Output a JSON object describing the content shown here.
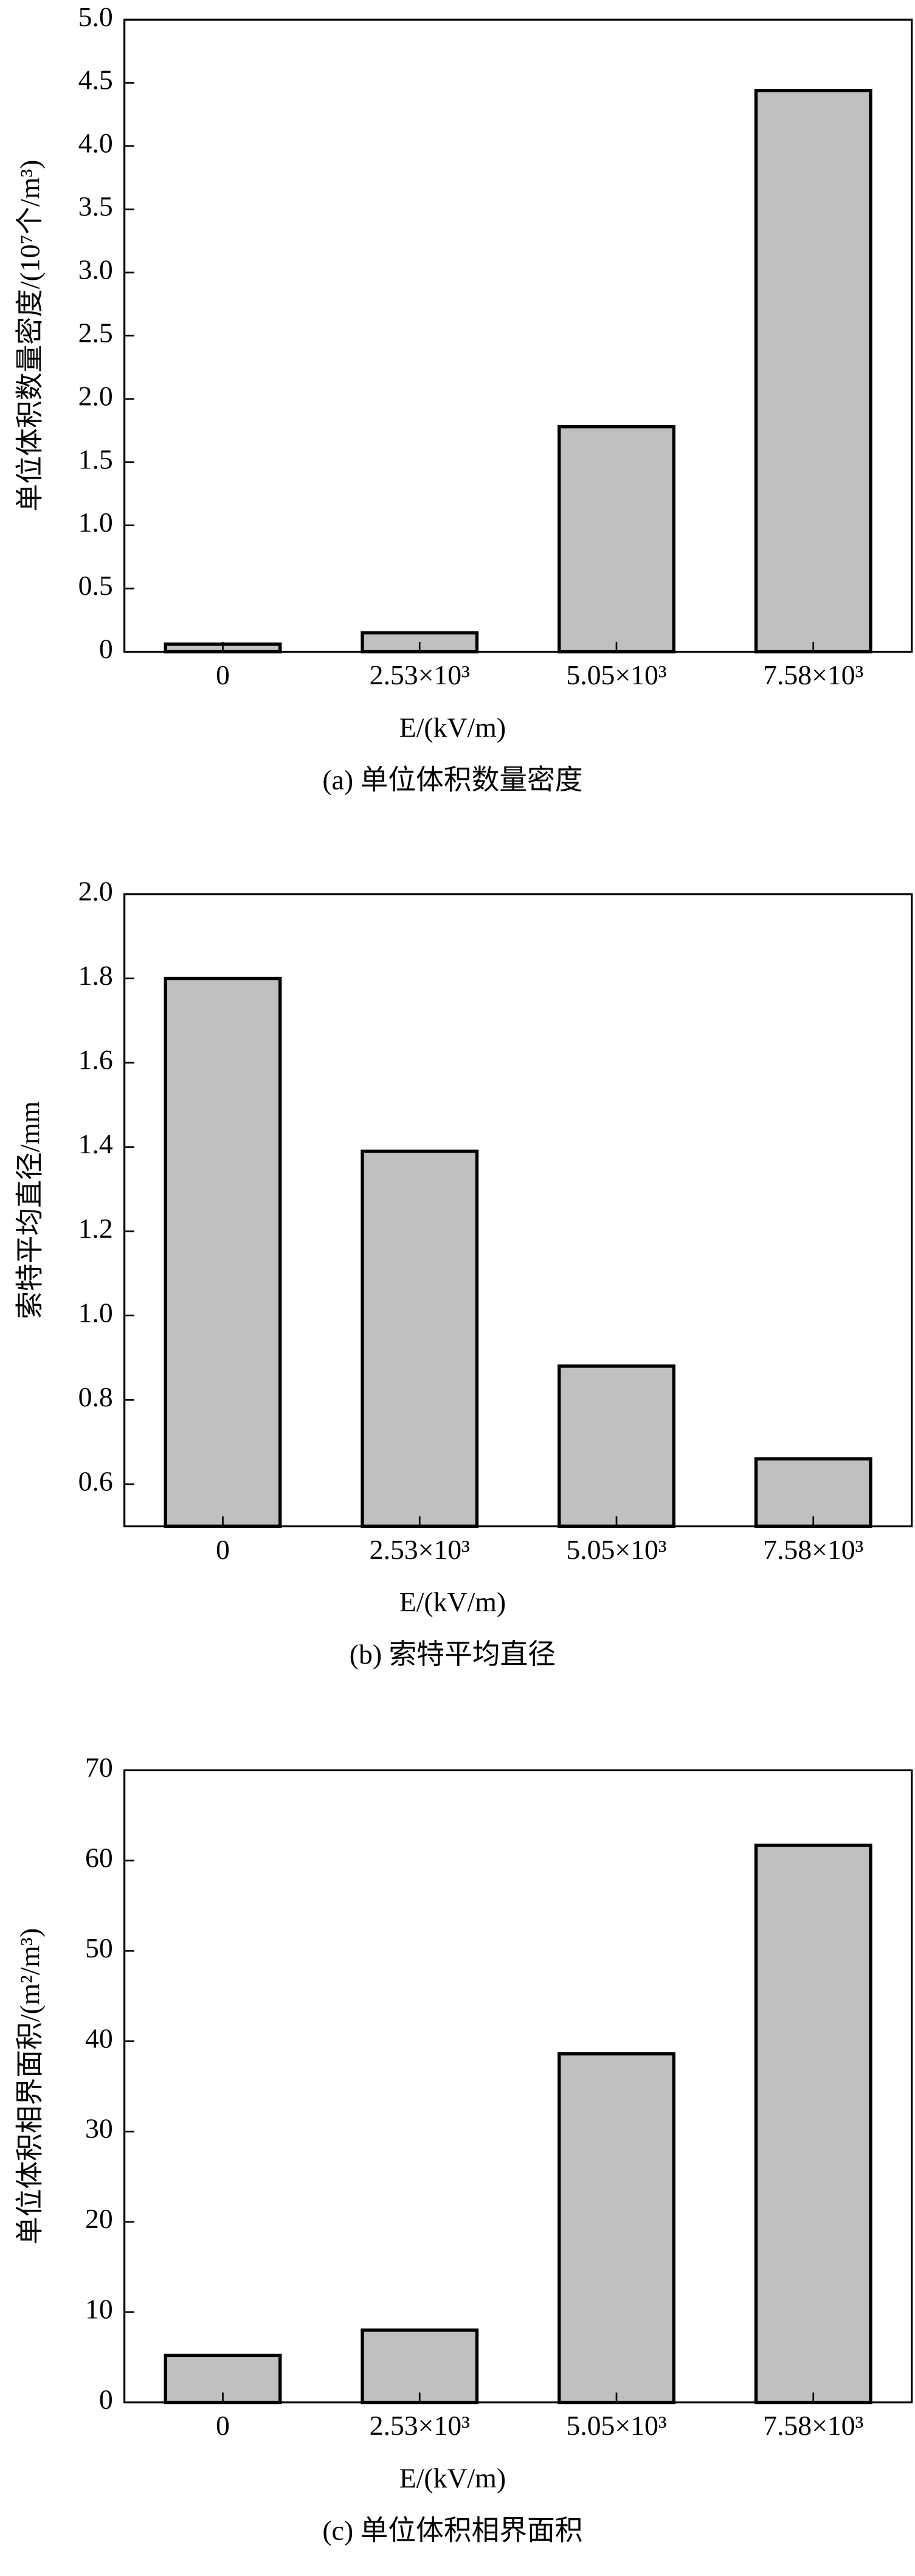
{
  "chart_data": [
    {
      "type": "bar",
      "title": "(a) 单位体积数量密度",
      "x_label": "E/(kV/m)",
      "y_label": "单位体积数量密度/(10⁷个/m³)",
      "categories": [
        "0",
        "2.53×10³",
        "5.05×10³",
        "7.58×10³"
      ],
      "values": [
        0.06,
        0.15,
        1.78,
        4.44
      ],
      "color": "#c0c0c0",
      "ylim": [
        0,
        5
      ],
      "yticks": [
        0,
        0.5,
        {
          "value": 1,
          "label": "1.0"
        },
        1.5,
        {
          "value": 2,
          "label": "2.0"
        },
        2.5,
        {
          "value": 3,
          "label": "3.0"
        },
        3.5,
        {
          "value": 4,
          "label": "4.0"
        },
        4.5,
        {
          "value": 5,
          "label": "5.0"
        }
      ],
      "grid": false
    },
    {
      "type": "bar",
      "title": "(b) 索特平均直径",
      "x_label": "E/(kV/m)",
      "y_label": "索特平均直径/mm",
      "categories": [
        "0",
        "2.53×10³",
        "5.05×10³",
        "7.58×10³"
      ],
      "values": [
        1.8,
        1.39,
        0.88,
        0.66
      ],
      "color": "#c0c0c0",
      "ylim": [
        0.5,
        2
      ],
      "yticks": [
        0.6,
        0.8,
        {
          "value": 1,
          "label": "1.0"
        },
        1.2,
        1.4,
        1.6,
        1.8,
        {
          "value": 2,
          "label": "2.0"
        }
      ],
      "grid": false
    },
    {
      "type": "bar",
      "title": "(c) 单位体积相界面积",
      "x_label": "E/(kV/m)",
      "y_label": "单位体积相界面积/(m²/m³)",
      "categories": [
        "0",
        "2.53×10³",
        "5.05×10³",
        "7.58×10³"
      ],
      "values": [
        5.2,
        8,
        38.6,
        61.7
      ],
      "color": "#c0c0c0",
      "ylim": [
        0,
        70
      ],
      "yticks": [
        0,
        10,
        20,
        30,
        40,
        50,
        60,
        70
      ],
      "grid": false
    }
  ]
}
